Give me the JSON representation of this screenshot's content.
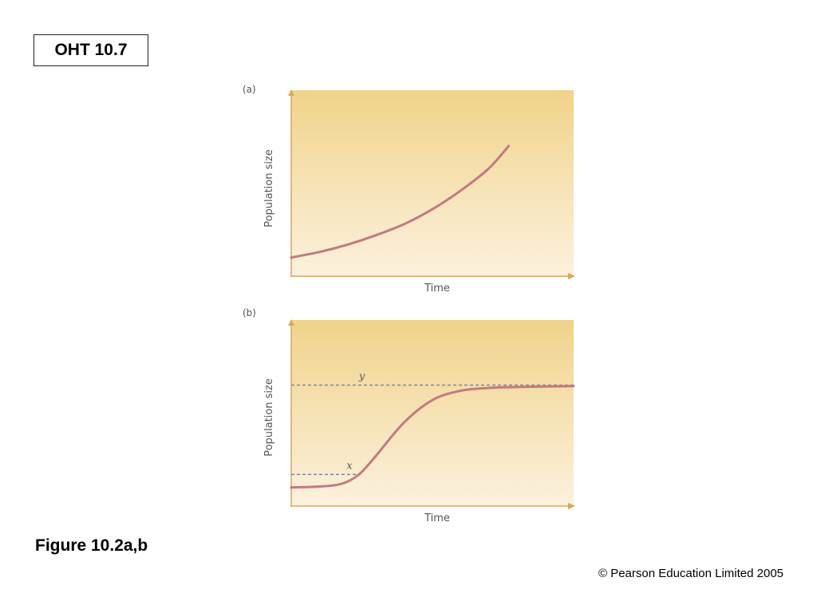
{
  "slide": {
    "tag": "OHT 10.7",
    "caption": "Figure 10.2a,b",
    "copyright": "© Pearson Education Limited 2005"
  },
  "colors": {
    "curve": "#c27a82",
    "dashed": "#7a84a8",
    "axis": "#e0a45a",
    "bg_top": "#f0d38a",
    "bg_bottom": "#fcf1de"
  },
  "chart_data": [
    {
      "type": "line",
      "panel_label": "(a)",
      "xlabel": "Time",
      "ylabel": "Population size",
      "xlim": [
        0,
        100
      ],
      "ylim": [
        0,
        100
      ],
      "series": [
        {
          "points": [
            [
              0,
              10
            ],
            [
              10,
              13
            ],
            [
              20,
              17
            ],
            [
              30,
              22
            ],
            [
              40,
              28
            ],
            [
              50,
              36
            ],
            [
              60,
              46
            ],
            [
              70,
              58
            ],
            [
              77,
              70
            ]
          ]
        }
      ],
      "annotations": []
    },
    {
      "type": "line",
      "panel_label": "(b)",
      "xlabel": "Time",
      "ylabel": "Population size",
      "xlim": [
        0,
        100
      ],
      "ylim": [
        0,
        100
      ],
      "series": [
        {
          "points": [
            [
              0,
              10
            ],
            [
              10,
              10.5
            ],
            [
              18,
              12
            ],
            [
              24,
              17
            ],
            [
              30,
              27
            ],
            [
              40,
              45
            ],
            [
              50,
              57
            ],
            [
              60,
              62
            ],
            [
              70,
              63.5
            ],
            [
              80,
              64
            ],
            [
              100,
              64.5
            ]
          ]
        }
      ],
      "annotations": [
        {
          "label": "y",
          "y": 65,
          "x_from": 0,
          "x_to": 100
        },
        {
          "label": "x",
          "y": 17,
          "x_from": 0,
          "x_to": 24
        }
      ]
    }
  ]
}
